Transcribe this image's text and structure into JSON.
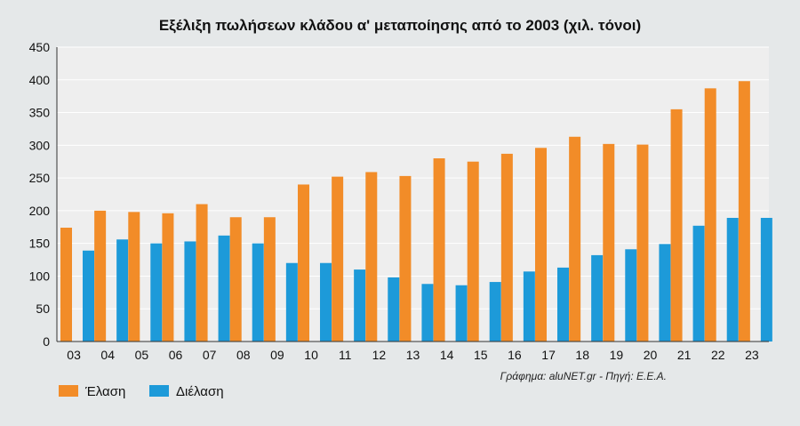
{
  "chart_data": {
    "type": "bar",
    "title": "Εξέλιξη πωλήσεων κλάδου α' μεταποίησης από το 2003 (χιλ. τόνοι)",
    "categories": [
      "03",
      "04",
      "05",
      "06",
      "07",
      "08",
      "09",
      "10",
      "11",
      "12",
      "13",
      "14",
      "15",
      "16",
      "17",
      "18",
      "19",
      "20",
      "21",
      "22",
      "23"
    ],
    "series": [
      {
        "name": "Έλαση",
        "color": "#f28c28",
        "values": [
          174,
          200,
          198,
          196,
          210,
          190,
          190,
          240,
          252,
          259,
          253,
          280,
          275,
          287,
          296,
          313,
          302,
          301,
          355,
          387,
          398
        ]
      },
      {
        "name": "Διέλαση",
        "color": "#1d9ad9",
        "values": [
          139,
          156,
          150,
          153,
          162,
          150,
          120,
          120,
          110,
          98,
          88,
          86,
          91,
          107,
          113,
          132,
          141,
          149,
          177,
          189,
          189
        ]
      }
    ],
    "ylim": [
      0,
      450
    ],
    "yticks": [
      0,
      50,
      100,
      150,
      200,
      250,
      300,
      350,
      400,
      450
    ],
    "grid": true,
    "legend_position": "bottom-left",
    "colors": {
      "background": "#e5e8e9",
      "plot_background": "#eeeeee",
      "grid": "#ffffff"
    }
  },
  "credit": "Γράφημα: aluNET.gr - Πηγή: Ε.Ε.Α."
}
